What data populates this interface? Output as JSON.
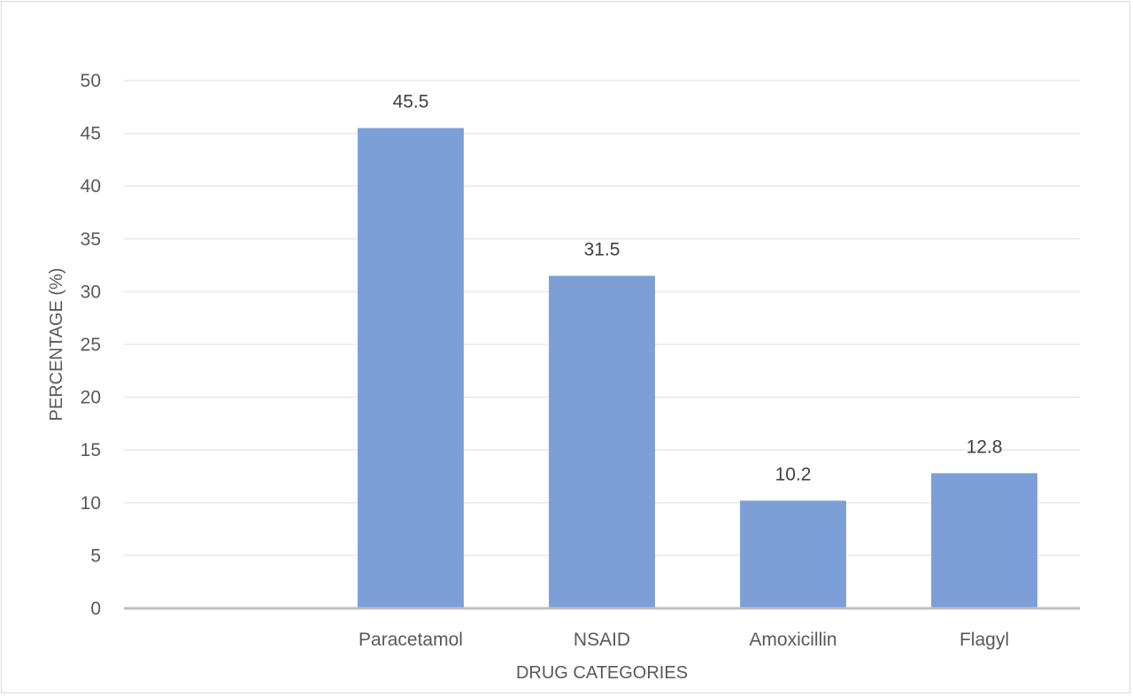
{
  "chart_data": {
    "type": "bar",
    "categories": [
      "",
      "Paracetamol",
      "NSAID",
      "Amoxicillin",
      "Flagyl"
    ],
    "values": [
      null,
      45.5,
      31.5,
      10.2,
      12.8
    ],
    "data_labels": [
      "",
      "45.5",
      "31.5",
      "10.2",
      "12.8"
    ],
    "xlabel": "DRUG CATEGORIES",
    "ylabel": "PERCENTAGE (%)",
    "ylim": [
      0,
      50
    ],
    "yticks": [
      0,
      5,
      10,
      15,
      20,
      25,
      30,
      35,
      40,
      45,
      50
    ],
    "grid": true,
    "legend": "none",
    "bar_color": "#7b9fd6",
    "grid_color": "#e8e8e8",
    "axis_color": "#bfbfbf"
  }
}
